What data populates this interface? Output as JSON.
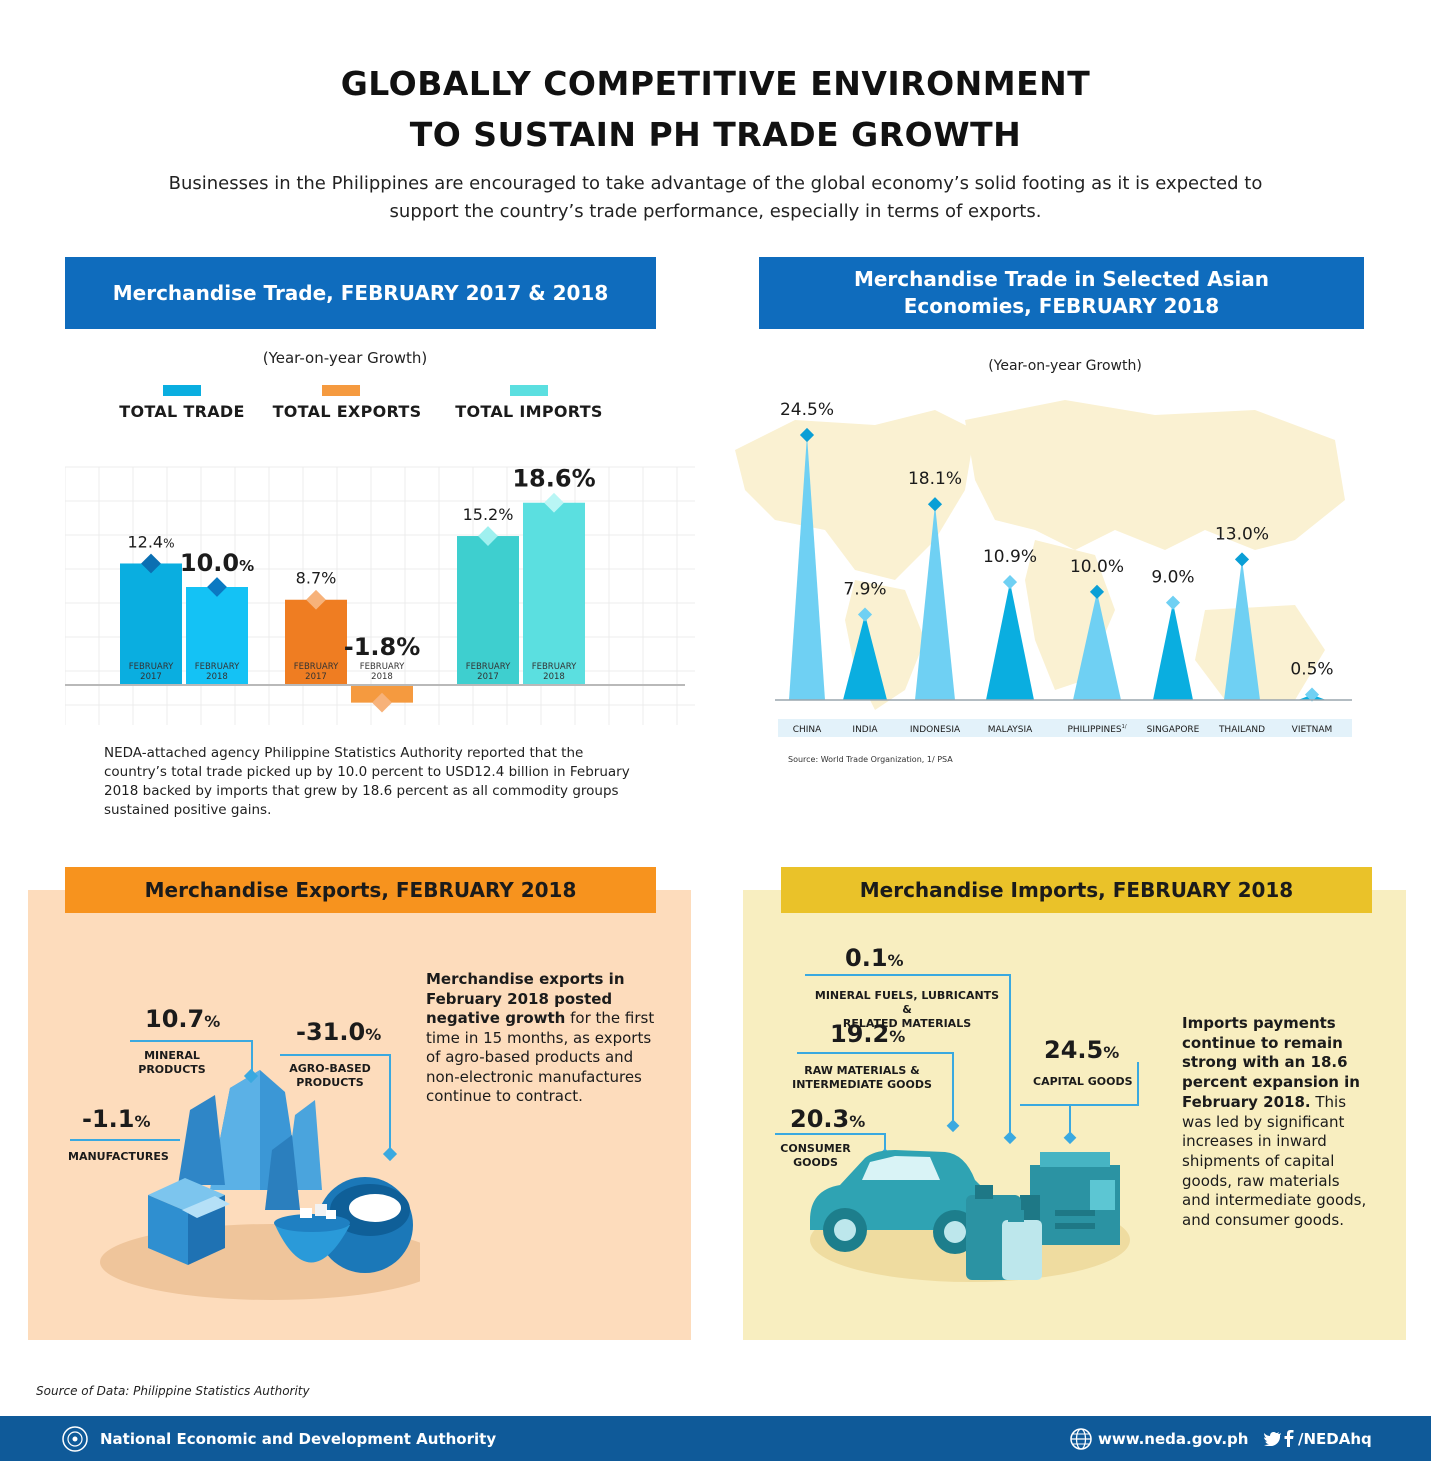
{
  "header": {
    "title_line1": "GLOBALLY COMPETITIVE ENVIRONMENT",
    "title_line2": "TO SUSTAIN PH TRADE GROWTH",
    "intro": "Businesses in the Philippines are encouraged to take advantage of the global economy’s solid footing as it is expected to support the country’s trade performance, especially in terms of exports."
  },
  "trade_panel": {
    "title": "Merchandise Trade, FEBRUARY 2017 & 2018",
    "subtitle": "(Year-on-year Growth)",
    "description": "NEDA-attached agency Philippine Statistics Authority reported that the country’s total trade picked up by 10.0 percent to USD12.4 billion in February 2018 backed by imports that grew by 18.6 percent as all commodity groups sustained positive gains."
  },
  "asia_panel": {
    "title_line1": "Merchandise Trade in Selected Asian",
    "title_line2": "Economies, FEBRUARY 2018",
    "subtitle": "(Year-on-year Growth)",
    "source": "Source: World Trade Organization, 1/ PSA"
  },
  "exports_panel": {
    "title": "Merchandise Exports, FEBRUARY 2018",
    "text_bold": "Merchandise exports in February 2018 posted negative growth",
    "text_rest": " for the first time in 15 months, as exports of agro-based products and non-electronic manufactures continue to contract.",
    "items": [
      {
        "value": "10.7",
        "unit": "%",
        "label_line1": "MINERAL",
        "label_line2": "PRODUCTS"
      },
      {
        "value": "-31.0",
        "unit": "%",
        "label_line1": "AGRO-BASED",
        "label_line2": "PRODUCTS"
      },
      {
        "value": "-1.1",
        "unit": "%",
        "label_line1": "MANUFACTURES",
        "label_line2": ""
      }
    ]
  },
  "imports_panel": {
    "title": "Merchandise Imports, FEBRUARY 2018",
    "text_bold": "Imports payments continue to remain strong with an 18.6 percent expansion in February 2018.",
    "text_rest": " This was led by significant increases in inward shipments of capital goods, raw materials and intermediate goods, and consumer goods.",
    "items": [
      {
        "value": "0.1",
        "unit": "%",
        "label_line1": "MINERAL FUELS, LUBRICANTS &",
        "label_line2": "RELATED MATERIALS"
      },
      {
        "value": "19.2",
        "unit": "%",
        "label_line1": "RAW MATERIALS &",
        "label_line2": "INTERMEDIATE GOODS"
      },
      {
        "value": "24.5",
        "unit": "%",
        "label_line1": "CAPITAL GOODS",
        "label_line2": ""
      },
      {
        "value": "20.3",
        "unit": "%",
        "label_line1": "CONSUMER",
        "label_line2": "GOODS"
      }
    ]
  },
  "source_note": "Source of Data: Philippine Statistics Authority",
  "footer": {
    "org": "National Economic and Development Authority",
    "website": "www.neda.gov.ph",
    "social": "/NEDAhq"
  },
  "colors": {
    "blue_header": "#0f6cbd",
    "trade": "#0aaee0",
    "trade_2018": "#14c2f5",
    "exports": "#ef7d22",
    "exports_2018": "#f59a3f",
    "imports": "#3ecfcf",
    "imports_2018": "#5bdfe0",
    "orange_header": "#f7931e",
    "yellow_header": "#eac229"
  },
  "chart_data": [
    {
      "type": "bar",
      "ylabel": "",
      "legend": [
        "TOTAL TRADE",
        "TOTAL EXPORTS",
        "TOTAL IMPORTS"
      ],
      "legend_position": "top",
      "grid": true,
      "ylim": [
        -3,
        21
      ],
      "groups": [
        {
          "name": "TOTAL TRADE",
          "bars": [
            {
              "label_line1": "FEBRUARY",
              "label_line2": "2017",
              "value": 12.4,
              "value_label": "12.4",
              "unit": "%"
            },
            {
              "label_line1": "FEBRUARY",
              "label_line2": "2018",
              "value": 10.0,
              "value_label": "10.0",
              "unit": "%"
            }
          ]
        },
        {
          "name": "TOTAL EXPORTS",
          "bars": [
            {
              "label_line1": "FEBRUARY",
              "label_line2": "2017",
              "value": 8.7,
              "value_label": "8.7%",
              "unit": ""
            },
            {
              "label_line1": "FEBRUARY",
              "label_line2": "2018",
              "value": -1.8,
              "value_label": "-1.8%",
              "unit": ""
            }
          ]
        },
        {
          "name": "TOTAL IMPORTS",
          "bars": [
            {
              "label_line1": "FEBRUARY",
              "label_line2": "2017",
              "value": 15.2,
              "value_label": "15.2%",
              "unit": ""
            },
            {
              "label_line1": "FEBRUARY",
              "label_line2": "2018",
              "value": 18.6,
              "value_label": "18.6%",
              "unit": ""
            }
          ]
        }
      ]
    },
    {
      "type": "bar",
      "ylim": [
        0,
        26
      ],
      "categories": [
        "CHINA",
        "INDIA",
        "INDONESIA",
        "MALAYSIA",
        "PHILIPPINES",
        "SINGAPORE",
        "THAILAND",
        "VIETNAM"
      ],
      "category_notes": [
        "",
        "",
        "",
        "",
        "1/",
        "",
        "",
        ""
      ],
      "values": [
        24.5,
        7.9,
        18.1,
        10.9,
        10.0,
        9.0,
        13.0,
        0.5
      ],
      "value_labels": [
        "24.5%",
        "7.9%",
        "18.1%",
        "10.9%",
        "10.0%",
        "9.0%",
        "13.0%",
        "0.5%"
      ]
    }
  ]
}
